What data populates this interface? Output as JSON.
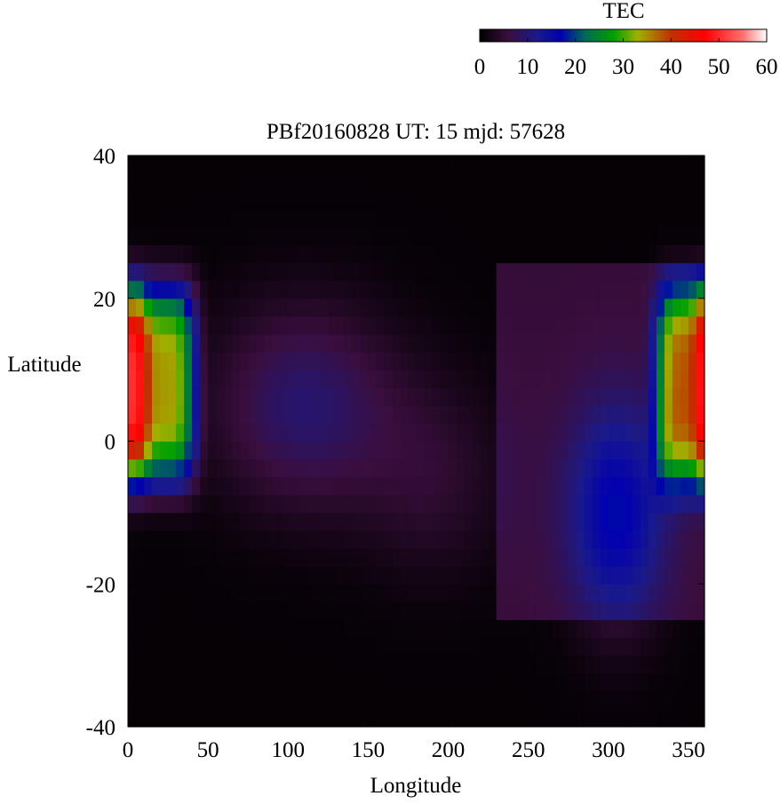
{
  "chart_data": {
    "type": "heatmap",
    "title": "PBf20160828  UT: 15  mjd: 57628",
    "xlabel": "Longitude",
    "ylabel": "Latitude",
    "xlim": [
      0,
      360
    ],
    "ylim": [
      -40,
      40
    ],
    "xticks": [
      "0",
      "50",
      "100",
      "150",
      "200",
      "250",
      "300",
      "350"
    ],
    "xtick_values": [
      0,
      50,
      100,
      150,
      200,
      250,
      300,
      350
    ],
    "yticks": [
      "40",
      "20",
      "0",
      "-20",
      "-40"
    ],
    "ytick_values": [
      40,
      20,
      0,
      -20,
      -40
    ],
    "grid": false,
    "colorbar": {
      "label": "TEC",
      "range": [
        0,
        60
      ],
      "ticks": [
        "0",
        "10",
        "20",
        "30",
        "40",
        "50",
        "60"
      ],
      "tick_values": [
        0,
        10,
        20,
        30,
        40,
        50,
        60
      ],
      "position": "top-right",
      "colors": {
        "0": "#000000",
        "6": "#3a0e3e",
        "12": "#1a1a8c",
        "17": "#0000b0",
        "22": "#006a55",
        "28": "#00a000",
        "33": "#a0b000",
        "40": "#c03000",
        "47": "#ff0000",
        "55": "#ff7070",
        "60": "#ffffff"
      }
    },
    "grid_resolution": {
      "lon_step": 5,
      "lat_step": 2.5
    },
    "features": [
      {
        "lon": 20,
        "lat": 8,
        "peak": 33,
        "spread_lon": 22,
        "spread_lat": 14,
        "shape": "super-gaussian"
      },
      {
        "lon": 350,
        "lat": 8,
        "peak": 32,
        "spread_lon": 20,
        "spread_lat": 14,
        "shape": "super-gaussian"
      },
      {
        "lon": 305,
        "lat": -10,
        "peak": 12,
        "spread_lon": 30,
        "spread_lat": 15
      },
      {
        "lon": 110,
        "lat": 5,
        "peak": 9,
        "spread_lon": 55,
        "spread_lat": 14
      },
      {
        "lon": 190,
        "lat": -5,
        "peak": 4,
        "spread_lon": 45,
        "spread_lat": 14
      }
    ],
    "background": {
      "dayside_level": 5.5,
      "dayside_lon_range": [
        230,
        360
      ],
      "dayside_lat_half_width": 24,
      "nightside_level": 0.5
    }
  }
}
